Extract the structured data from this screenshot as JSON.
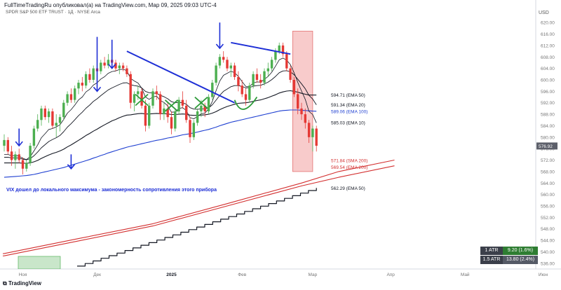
{
  "header": {
    "text": "FullTimeTradingRu опубликовал(а) на TradingView.com, Мар 09, 2025 09:03 UTC-4",
    "instrument": "SPDR S&P 500 ETF TRUST · 1Д · NYSE Arca"
  },
  "annotation": "VIX дошел до локального максимума - закономерность сопротивления этого прибора",
  "logo": "TradingView",
  "atr": [
    {
      "label": "1 ATR",
      "value": "9.20 (1.6%)",
      "color": "#2e7d32"
    },
    {
      "label": "1.5 ATR",
      "value": "13.80 (2.4%)",
      "color": "#555a66"
    }
  ],
  "colors": {
    "up": "#4caf50",
    "down": "#e53935",
    "ema100": "#1e3fd1",
    "ema200": "#d32f2f",
    "black": "#131722",
    "marker": "#1e2fd6",
    "cross": "#2e9c3a",
    "zone": "#f2a0a0"
  },
  "chart_data": {
    "type": "candlestick",
    "currency": "USD",
    "ylim": [
      534,
      622
    ],
    "y_ticks": [
      "620.00",
      "616.00",
      "612.00",
      "608.00",
      "604.00",
      "600.00",
      "596.00",
      "592.00",
      "588.00",
      "584.00",
      "580.00",
      "576.00",
      "572.00",
      "568.00",
      "564.00",
      "560.00",
      "556.00",
      "552.00",
      "548.00",
      "544.00",
      "540.00",
      "536.00"
    ],
    "x_labels": [
      {
        "label": "Ноя",
        "idx": 5,
        "bold": false
      },
      {
        "label": "Дек",
        "idx": 25,
        "bold": false
      },
      {
        "label": "2025",
        "idx": 45,
        "bold": true
      },
      {
        "label": "Фев",
        "idx": 64,
        "bold": false
      },
      {
        "label": "Мар",
        "idx": 83,
        "bold": false
      },
      {
        "label": "Апр",
        "idx": 104,
        "bold": false
      },
      {
        "label": "Май",
        "idx": 124,
        "bold": false
      },
      {
        "label": "Июн",
        "idx": 145,
        "bold": false
      }
    ],
    "current_price": "576.92",
    "level_labels": [
      {
        "text": "594.71 (EMA 50)",
        "price": 594.71,
        "color": "#131722"
      },
      {
        "text": "591.34 (EMA 20)",
        "price": 591.34,
        "color": "#131722"
      },
      {
        "text": "589.06 (EMA 100)",
        "price": 589.06,
        "color": "#1e3fd1"
      },
      {
        "text": "585.03 (EMA 10)",
        "price": 585.03,
        "color": "#131722"
      },
      {
        "text": "571.84 (SMA 200)",
        "price": 571.84,
        "color": "#d32f2f"
      },
      {
        "text": "569.54 (EMA 200)",
        "price": 569.54,
        "color": "#d32f2f"
      },
      {
        "text": "562.29 (EMA 50)",
        "price": 562.29,
        "color": "#131722"
      }
    ],
    "candles": [
      [
        577,
        581,
        575,
        579
      ],
      [
        579,
        580,
        574,
        575
      ],
      [
        575,
        577,
        570,
        572
      ],
      [
        572,
        575,
        569,
        574
      ],
      [
        574,
        576,
        571,
        572
      ],
      [
        572,
        573,
        567,
        569
      ],
      [
        569,
        572,
        568,
        571
      ],
      [
        571,
        578,
        570,
        577
      ],
      [
        577,
        584,
        576,
        583
      ],
      [
        583,
        588,
        582,
        586
      ],
      [
        586,
        591,
        584,
        590
      ],
      [
        590,
        591,
        586,
        587
      ],
      [
        587,
        590,
        585,
        589
      ],
      [
        589,
        590,
        583,
        584
      ],
      [
        584,
        588,
        580,
        585
      ],
      [
        585,
        588,
        582,
        587
      ],
      [
        587,
        593,
        586,
        592
      ],
      [
        592,
        596,
        591,
        595
      ],
      [
        595,
        597,
        592,
        593
      ],
      [
        593,
        598,
        592,
        597
      ],
      [
        597,
        600,
        595,
        599
      ],
      [
        599,
        601,
        596,
        598
      ],
      [
        598,
        603,
        597,
        602
      ],
      [
        602,
        604,
        599,
        600
      ],
      [
        600,
        605,
        599,
        604
      ],
      [
        604,
        606,
        602,
        603
      ],
      [
        603,
        607,
        602,
        606
      ],
      [
        606,
        608,
        604,
        605
      ],
      [
        605,
        609,
        604,
        607
      ],
      [
        607,
        608,
        605,
        606
      ],
      [
        606,
        607,
        603,
        604
      ],
      [
        604,
        606,
        602,
        605
      ],
      [
        605,
        606,
        603,
        604
      ],
      [
        604,
        605,
        601,
        602
      ],
      [
        602,
        603,
        590,
        592
      ],
      [
        592,
        596,
        589,
        595
      ],
      [
        595,
        598,
        593,
        596
      ],
      [
        596,
        597,
        590,
        591
      ],
      [
        591,
        593,
        582,
        584
      ],
      [
        584,
        592,
        583,
        591
      ],
      [
        591,
        597,
        590,
        596
      ],
      [
        596,
        598,
        593,
        595
      ],
      [
        595,
        596,
        586,
        588
      ],
      [
        588,
        592,
        586,
        590
      ],
      [
        590,
        592,
        585,
        587
      ],
      [
        587,
        589,
        581,
        583
      ],
      [
        583,
        590,
        582,
        589
      ],
      [
        589,
        594,
        588,
        593
      ],
      [
        593,
        596,
        590,
        591
      ],
      [
        591,
        593,
        585,
        586
      ],
      [
        586,
        587,
        578,
        580
      ],
      [
        580,
        586,
        579,
        585
      ],
      [
        585,
        590,
        584,
        589
      ],
      [
        589,
        593,
        587,
        591
      ],
      [
        591,
        592,
        587,
        589
      ],
      [
        589,
        595,
        588,
        594
      ],
      [
        594,
        600,
        593,
        599
      ],
      [
        599,
        606,
        598,
        605
      ],
      [
        605,
        609,
        604,
        608
      ],
      [
        608,
        610,
        606,
        607
      ],
      [
        607,
        608,
        603,
        604
      ],
      [
        604,
        606,
        601,
        605
      ],
      [
        605,
        606,
        600,
        601
      ],
      [
        601,
        603,
        596,
        598
      ],
      [
        598,
        600,
        594,
        595
      ],
      [
        595,
        597,
        591,
        593
      ],
      [
        593,
        599,
        592,
        598
      ],
      [
        598,
        603,
        597,
        602
      ],
      [
        602,
        604,
        599,
        600
      ],
      [
        600,
        602,
        597,
        599
      ],
      [
        599,
        604,
        598,
        603
      ],
      [
        603,
        606,
        601,
        604
      ],
      [
        604,
        608,
        603,
        607
      ],
      [
        607,
        611,
        606,
        610
      ],
      [
        610,
        613,
        609,
        612
      ],
      [
        612,
        613,
        608,
        609
      ],
      [
        609,
        610,
        603,
        604
      ],
      [
        604,
        605,
        599,
        600
      ],
      [
        600,
        601,
        594,
        595
      ],
      [
        595,
        597,
        588,
        590
      ],
      [
        590,
        592,
        586,
        588
      ],
      [
        588,
        590,
        583,
        585
      ],
      [
        585,
        586,
        578,
        580
      ],
      [
        580,
        584,
        575,
        583
      ],
      [
        583,
        584,
        575,
        577
      ]
    ],
    "ema_black_1": [
      574,
      574,
      573.5,
      573.6,
      573.4,
      572.6,
      572.2,
      573.2,
      575.2,
      577.3,
      579.8,
      581.2,
      582.7,
      583.0,
      583.6,
      584.3,
      586.2,
      588.4,
      589.6,
      591.2,
      593.0,
      594.0,
      595.8,
      596.7,
      598.2,
      599.0,
      600.3,
      601.1,
      602.3,
      602.9,
      603.1,
      603.6,
      603.7,
      603.2,
      600.5,
      599.6,
      598.9,
      597.1,
      594.0,
      593.2,
      594.0,
      594.3,
      592.8,
      592.1,
      590.9,
      588.7,
      588.8,
      590.0,
      590.3,
      589.3,
      586.8,
      586.4,
      587.2,
      588.2,
      588.4,
      589.9,
      592.5,
      596.2,
      599.6,
      601.6,
      602.3,
      603.0,
      602.5,
      601.2,
      599.4,
      597.7,
      597.7,
      598.9,
      599.3,
      599.2,
      600.2,
      601.2,
      602.7,
      604.8,
      607.0,
      607.6,
      606.9,
      605.3,
      602.5,
      599.1,
      596.1,
      593.2,
      589.0,
      587.9,
      585.0
    ],
    "ema_black_2": [
      573,
      573,
      572.8,
      572.8,
      572.7,
      572.3,
      572.1,
      572.5,
      573.5,
      574.8,
      576.3,
      577.4,
      578.5,
      579.2,
      579.8,
      580.6,
      581.9,
      583.5,
      584.7,
      586.1,
      587.5,
      588.7,
      590.1,
      591.2,
      592.5,
      593.4,
      594.5,
      595.5,
      596.5,
      597.2,
      597.8,
      598.4,
      598.9,
      599.0,
      598.3,
      598.0,
      597.8,
      597.2,
      596.0,
      595.5,
      595.4,
      595.3,
      594.6,
      594.1,
      593.4,
      592.4,
      592.0,
      592.1,
      592.0,
      591.5,
      590.3,
      589.8,
      589.7,
      589.9,
      589.8,
      590.2,
      591.3,
      592.9,
      594.6,
      596.0,
      596.8,
      597.6,
      598.0,
      598.0,
      597.7,
      597.2,
      597.3,
      597.8,
      598.0,
      598.1,
      598.6,
      599.2,
      600.1,
      601.2,
      602.5,
      603.1,
      603.2,
      602.8,
      601.8,
      600.2,
      598.6,
      596.9,
      594.6,
      593.3,
      591.3
    ],
    "ema_black_3": [
      571,
      571,
      571,
      571,
      571,
      570.9,
      570.9,
      571,
      571.4,
      571.9,
      572.6,
      573.2,
      573.8,
      574.3,
      574.7,
      575.2,
      575.8,
      576.6,
      577.3,
      578.1,
      578.9,
      579.7,
      580.6,
      581.3,
      582.1,
      582.8,
      583.6,
      584.3,
      585.0,
      585.7,
      586.2,
      586.8,
      587.3,
      587.7,
      587.8,
      588.0,
      588.2,
      588.3,
      588.1,
      588.1,
      588.2,
      588.3,
      588.2,
      588.2,
      588.1,
      587.9,
      587.9,
      588.0,
      588.1,
      588.0,
      587.7,
      587.6,
      587.6,
      587.7,
      587.8,
      588.0,
      588.4,
      588.9,
      589.6,
      590.2,
      590.7,
      591.1,
      591.5,
      591.8,
      591.9,
      592.0,
      592.2,
      592.5,
      592.8,
      593.0,
      593.4,
      593.8,
      594.3,
      594.8,
      595.4,
      595.8,
      596.1,
      596.2,
      596.0,
      595.7,
      595.3,
      595.0,
      594.7,
      594.7,
      594.7
    ],
    "ema_blue_100": [
      566,
      566.1,
      566.2,
      566.3,
      566.4,
      566.5,
      566.6,
      566.8,
      567.0,
      567.3,
      567.6,
      567.9,
      568.2,
      568.5,
      568.8,
      569.1,
      569.4,
      569.8,
      570.2,
      570.6,
      571.0,
      571.4,
      571.8,
      572.2,
      572.7,
      573.1,
      573.6,
      574.0,
      574.5,
      574.9,
      575.3,
      575.7,
      576.1,
      576.5,
      576.8,
      577.1,
      577.4,
      577.7,
      578.0,
      578.3,
      578.6,
      578.9,
      579.1,
      579.4,
      579.7,
      579.9,
      580.2,
      580.5,
      580.8,
      581.0,
      581.2,
      581.5,
      581.8,
      582.1,
      582.4,
      582.7,
      583.1,
      583.5,
      584.0,
      584.4,
      584.8,
      585.2,
      585.5,
      585.8,
      586.1,
      586.4,
      586.7,
      587.0,
      587.3,
      587.6,
      587.9,
      588.2,
      588.5,
      588.8,
      589.1,
      589.3,
      589.4,
      589.5,
      589.5,
      589.5,
      589.4,
      589.3,
      589.2,
      589.1,
      589.06
    ],
    "ema_red_1": [
      [
        -40,
        535
      ],
      [
        0,
        538.6
      ],
      [
        20,
        543.8
      ],
      [
        40,
        549
      ],
      [
        60,
        556
      ],
      [
        80,
        563
      ],
      [
        90,
        566
      ],
      [
        105,
        570
      ]
    ],
    "ema_red_2": [
      [
        -40,
        535.6
      ],
      [
        0,
        539.4
      ],
      [
        20,
        544.6
      ],
      [
        40,
        549.8
      ],
      [
        60,
        556.8
      ],
      [
        80,
        564
      ],
      [
        90,
        568
      ],
      [
        105,
        572
      ]
    ],
    "ema_black_staircase_start": [
      [
        40,
        534
      ],
      [
        55,
        541
      ]
    ],
    "zone": {
      "idx_start": 78,
      "idx_end": 83,
      "y_top": 617,
      "y_bottom": 568
    },
    "trendlines": [
      {
        "from": [
          33,
          610
        ],
        "to": [
          62,
          592
        ]
      },
      {
        "from": [
          61,
          613
        ],
        "to": [
          77,
          609
        ]
      }
    ]
  }
}
